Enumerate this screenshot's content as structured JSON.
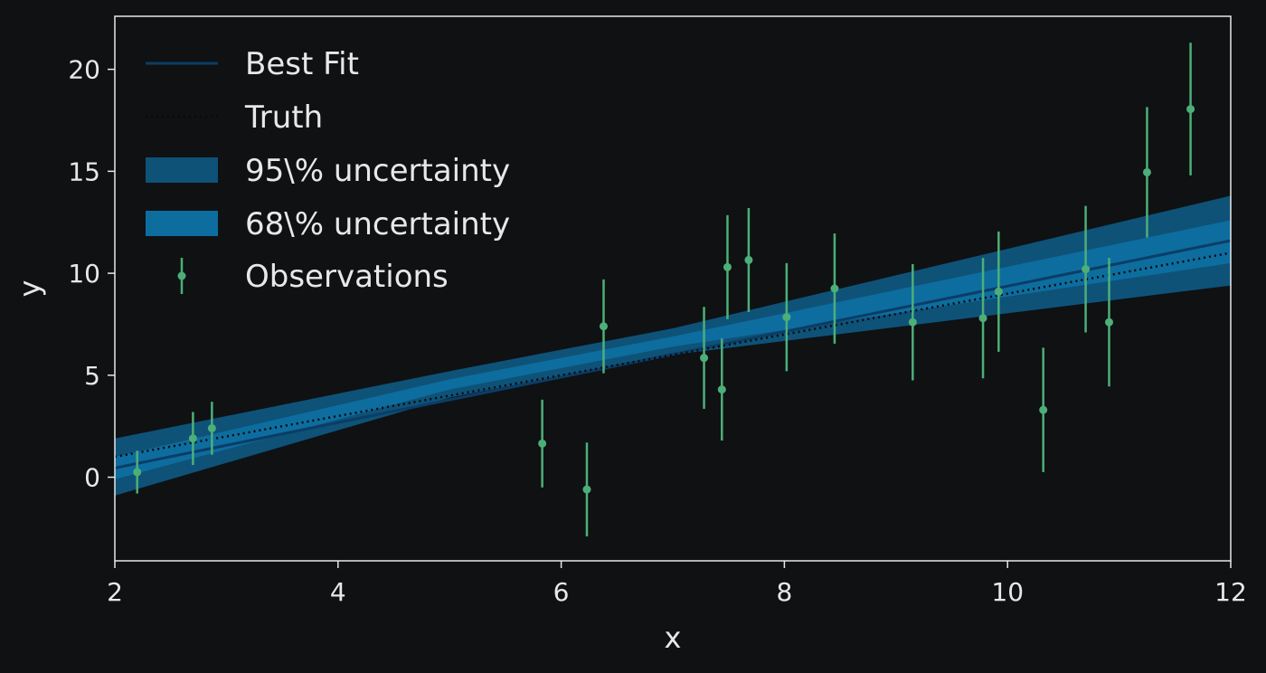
{
  "chart_data": {
    "type": "scatter",
    "title": "",
    "xlabel": "x",
    "ylabel": "y",
    "xlim": [
      2,
      12
    ],
    "ylim": [
      -4.1,
      22.6
    ],
    "xticks": [
      2,
      4,
      6,
      8,
      10,
      12
    ],
    "yticks": [
      0,
      5,
      10,
      15,
      20
    ],
    "grid": false,
    "legend_position": "top-left",
    "colors": {
      "background": "#0f1113",
      "axes": "#e8e8e8",
      "best_fit": "#0b3d66",
      "truth": "#0a0a0a",
      "band_95": "#0e5278",
      "band_68": "#0d6d9f",
      "observations": "#4caf78"
    },
    "legend": [
      {
        "key": "best_fit",
        "label": "Best Fit"
      },
      {
        "key": "truth",
        "label": "Truth"
      },
      {
        "key": "band_95",
        "label": "95\\% uncertainty"
      },
      {
        "key": "band_68",
        "label": "68\\% uncertainty"
      },
      {
        "key": "observations",
        "label": "Observations"
      }
    ],
    "best_fit": {
      "x": [
        2,
        12
      ],
      "y": [
        0.45,
        11.6
      ]
    },
    "truth": {
      "x": [
        2,
        12
      ],
      "y": [
        1.0,
        11.0
      ]
    },
    "band_95": {
      "x": [
        2,
        5,
        7,
        12
      ],
      "lower": [
        -0.9,
        3.9,
        6.0,
        9.4
      ],
      "upper": [
        1.9,
        5.2,
        7.3,
        13.8
      ]
    },
    "band_68": {
      "x": [
        2,
        5,
        7,
        12
      ],
      "lower": [
        -0.1,
        4.3,
        6.4,
        10.5
      ],
      "upper": [
        1.0,
        4.8,
        6.9,
        12.6
      ]
    },
    "observations": [
      {
        "x": 2.2,
        "y": 0.25,
        "err": 1.05
      },
      {
        "x": 2.7,
        "y": 1.9,
        "err": 1.3
      },
      {
        "x": 2.87,
        "y": 2.4,
        "err": 1.3
      },
      {
        "x": 5.83,
        "y": 1.65,
        "err": 2.15
      },
      {
        "x": 6.23,
        "y": -0.6,
        "err": 2.3
      },
      {
        "x": 6.38,
        "y": 7.4,
        "err": 2.3
      },
      {
        "x": 7.28,
        "y": 5.85,
        "err": 2.5
      },
      {
        "x": 7.44,
        "y": 4.3,
        "err": 2.5
      },
      {
        "x": 7.49,
        "y": 10.3,
        "err": 2.55
      },
      {
        "x": 7.68,
        "y": 10.65,
        "err": 2.55
      },
      {
        "x": 8.02,
        "y": 7.85,
        "err": 2.65
      },
      {
        "x": 8.45,
        "y": 9.25,
        "err": 2.7
      },
      {
        "x": 9.15,
        "y": 7.6,
        "err": 2.85
      },
      {
        "x": 9.78,
        "y": 7.8,
        "err": 2.95
      },
      {
        "x": 9.92,
        "y": 9.1,
        "err": 2.95
      },
      {
        "x": 10.32,
        "y": 3.3,
        "err": 3.05
      },
      {
        "x": 10.7,
        "y": 10.2,
        "err": 3.1
      },
      {
        "x": 10.91,
        "y": 7.6,
        "err": 3.15
      },
      {
        "x": 11.25,
        "y": 14.95,
        "err": 3.2
      },
      {
        "x": 11.64,
        "y": 18.05,
        "err": 3.25
      }
    ]
  }
}
